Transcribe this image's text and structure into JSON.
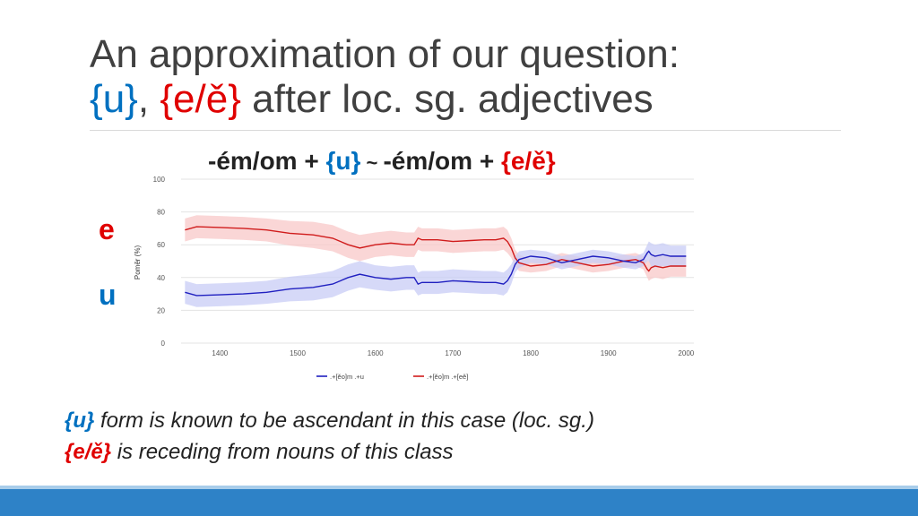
{
  "slide": {
    "title_line1": "An approximation of our question:",
    "title_u": "{u}",
    "title_comma": ",",
    "title_e": "{e/ě}",
    "title_rest": "after loc. sg. adjectives"
  },
  "heading": {
    "part1": "-ém/om + ",
    "u": "{u}",
    "tilde": " ~ ",
    "part2": "-ém/om + ",
    "e": "{e/ě}"
  },
  "side_labels": {
    "e": "e",
    "u": "u"
  },
  "notes": {
    "line1_key": "{u}",
    "line1_text": " form is known to be ascendant in this case (loc. sg.)",
    "line2_key": "{e/ě}",
    "line2_text": " is receding from nouns of this class"
  },
  "colors": {
    "u_line": "#2020c0",
    "u_band": "#c8ccf6",
    "e_line": "#d01c1c",
    "e_band": "#f8c8c8",
    "accent_blue": "#0070c0",
    "accent_red": "#e00000",
    "footer": "#2e82c7"
  },
  "chart_data": {
    "type": "line",
    "title": "",
    "xlabel": "",
    "ylabel": "Poměr (%)",
    "xlim": [
      1350,
      2010
    ],
    "ylim": [
      0,
      100
    ],
    "x_ticks": [
      "1400",
      "1500",
      "1600",
      "1700",
      "1800",
      "1900",
      "2000"
    ],
    "y_ticks": [
      "0",
      "20",
      "40",
      "60",
      "80",
      "100"
    ],
    "legend_position": "bottom",
    "series": [
      {
        "name": ".+[ěo]m .+u",
        "color": "#2020c0",
        "x": [
          1355,
          1370,
          1400,
          1430,
          1460,
          1490,
          1520,
          1545,
          1555,
          1565,
          1580,
          1600,
          1620,
          1640,
          1650,
          1655,
          1660,
          1680,
          1700,
          1720,
          1740,
          1755,
          1765,
          1770,
          1775,
          1780,
          1785,
          1800,
          1820,
          1840,
          1860,
          1880,
          1900,
          1920,
          1935,
          1945,
          1950,
          1952,
          1955,
          1960,
          1970,
          1980,
          1990,
          2000
        ],
        "values": [
          31,
          29,
          29.5,
          30,
          31,
          33,
          34,
          36,
          38,
          40,
          42,
          40,
          39,
          40,
          40,
          36,
          37,
          37,
          38,
          37.5,
          37,
          37,
          36,
          38,
          42,
          48,
          51,
          53,
          52,
          49,
          51,
          53,
          52,
          50,
          49,
          51,
          55,
          56,
          54,
          53,
          54,
          53,
          53,
          53
        ],
        "band": [
          7,
          7,
          7,
          7,
          7,
          7.5,
          8,
          8,
          8,
          8,
          8,
          7.5,
          7.5,
          7.5,
          7.5,
          7,
          7,
          7,
          7,
          7,
          7,
          7,
          7,
          7,
          6,
          5,
          5,
          4,
          4,
          4,
          4,
          4,
          4,
          4,
          4,
          4,
          5,
          6,
          7,
          7,
          7,
          6.5,
          6.5,
          6.5
        ]
      },
      {
        "name": ".+[ěo]m .+[eě]",
        "color": "#d01c1c",
        "x": [
          1355,
          1370,
          1400,
          1430,
          1460,
          1490,
          1520,
          1545,
          1555,
          1565,
          1580,
          1600,
          1620,
          1640,
          1650,
          1655,
          1660,
          1680,
          1700,
          1720,
          1740,
          1755,
          1765,
          1770,
          1775,
          1780,
          1785,
          1800,
          1820,
          1840,
          1860,
          1880,
          1900,
          1920,
          1935,
          1945,
          1950,
          1952,
          1955,
          1960,
          1970,
          1980,
          1990,
          2000
        ],
        "values": [
          69,
          71,
          70.5,
          70,
          69,
          67,
          66,
          64,
          62,
          60,
          58,
          60,
          61,
          60,
          60,
          64,
          63,
          63,
          62,
          62.5,
          63,
          63,
          64,
          62,
          58,
          52,
          49,
          47,
          48,
          51,
          49,
          47,
          48,
          50,
          51,
          49,
          45,
          44,
          46,
          47,
          46,
          47,
          47,
          47
        ],
        "band": [
          7,
          7,
          7,
          7,
          7,
          7.5,
          8,
          8,
          8,
          8,
          8,
          7.5,
          7.5,
          7.5,
          7.5,
          7,
          7,
          7,
          7,
          7,
          7,
          7,
          7,
          7,
          6,
          5,
          5,
          4,
          4,
          4,
          4,
          4,
          4,
          4,
          4,
          4,
          5,
          6,
          7,
          7,
          7,
          6.5,
          6.5,
          6.5
        ]
      }
    ]
  }
}
